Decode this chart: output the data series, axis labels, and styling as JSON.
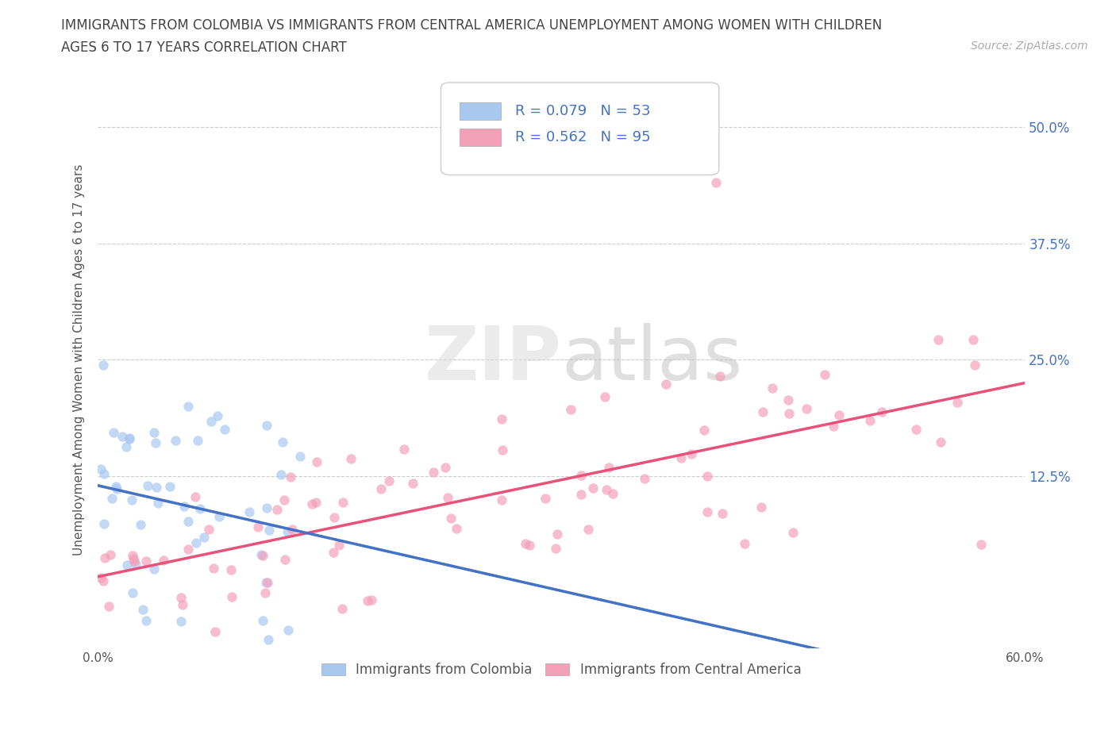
{
  "title_line1": "IMMIGRANTS FROM COLOMBIA VS IMMIGRANTS FROM CENTRAL AMERICA UNEMPLOYMENT AMONG WOMEN WITH CHILDREN",
  "title_line2": "AGES 6 TO 17 YEARS CORRELATION CHART",
  "source_text": "Source: ZipAtlas.com",
  "ylabel": "Unemployment Among Women with Children Ages 6 to 17 years",
  "xlim": [
    0.0,
    0.6
  ],
  "ylim": [
    -0.06,
    0.56
  ],
  "xtick_positions": [
    0.0,
    0.1,
    0.2,
    0.3,
    0.4,
    0.5,
    0.6
  ],
  "xticklabels": [
    "0.0%",
    "",
    "",
    "",
    "",
    "",
    "60.0%"
  ],
  "ytick_positions": [
    0.125,
    0.25,
    0.375,
    0.5
  ],
  "ytick_labels": [
    "12.5%",
    "25.0%",
    "37.5%",
    "50.0%"
  ],
  "watermark": "ZIPatlas",
  "legend_label1": "Immigrants from Colombia",
  "legend_label2": "Immigrants from Central America",
  "color_colombia": "#a8c8f0",
  "color_central_america": "#f4a0b8",
  "color_line_colombia": "#4472c4",
  "color_line_central_america": "#e8527a",
  "R_colombia": 0.079,
  "N_colombia": 53,
  "R_central": 0.562,
  "N_central": 95,
  "grid_color": "#cccccc",
  "background_color": "#ffffff",
  "title_color": "#444444"
}
